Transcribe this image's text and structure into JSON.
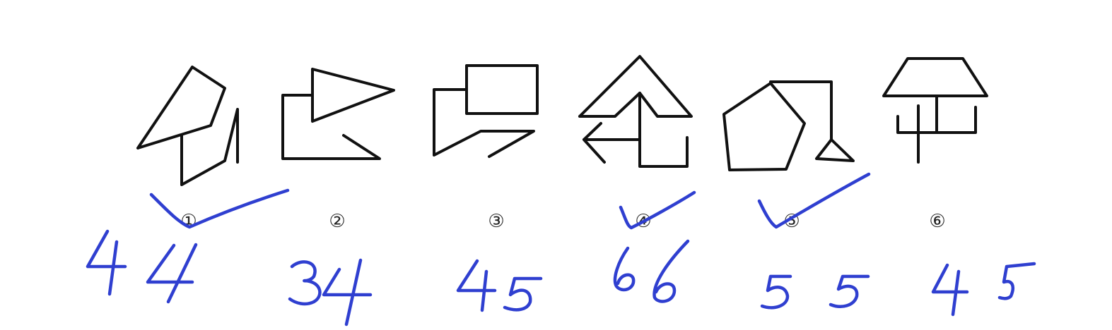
{
  "puzzle": {
    "options": [
      {
        "number": "①",
        "annotation": "44",
        "checked": true
      },
      {
        "number": "②",
        "annotation": "34",
        "checked": false
      },
      {
        "number": "③",
        "annotation": "45",
        "checked": false
      },
      {
        "number": "④",
        "annotation": "66",
        "checked": true
      },
      {
        "number": "⑤",
        "annotation": "55",
        "checked": true
      },
      {
        "number": "⑥",
        "annotation": "45",
        "checked": false
      }
    ]
  },
  "colors": {
    "figure_stroke": "#111111",
    "ink": "#2f3fd0",
    "background": "#ffffff"
  }
}
